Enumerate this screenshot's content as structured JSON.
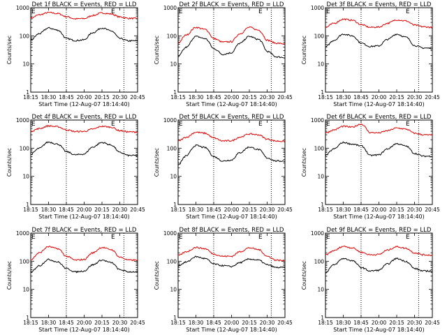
{
  "colors": {
    "events": "#000000",
    "lld": "#e00000",
    "axes": "#000000",
    "background": "#ffffff"
  },
  "shared": {
    "ylabel": "Counts/sec",
    "xlabel": "Start Time (12-Aug-07 18:14:40)",
    "x_ticks": [
      "18:15",
      "18:30",
      "18:45",
      "20:00",
      "20:15",
      "20:30",
      "20:45"
    ],
    "y_ticks": [
      "1",
      "10",
      "100",
      "1000"
    ],
    "marker_labels": [
      "E",
      "E"
    ]
  },
  "chart_data": [
    {
      "type": "line",
      "title": "Det 1f BLACK = Events, RED = LLD",
      "y_scale": "log",
      "ylim": [
        1,
        1000
      ],
      "series": [
        {
          "values": [
            430,
            560,
            670,
            620,
            480,
            400,
            410,
            530,
            650,
            600,
            470,
            420,
            410
          ]
        },
        {
          "values": [
            70,
            120,
            190,
            160,
            80,
            68,
            72,
            130,
            190,
            150,
            80,
            66,
            67
          ]
        }
      ]
    },
    {
      "type": "line",
      "title": "Det 2f BLACK = Events, RED = LLD",
      "y_scale": "log",
      "ylim": [
        1,
        1000
      ],
      "series": [
        {
          "values": [
            55,
            110,
            200,
            170,
            80,
            60,
            62,
            120,
            200,
            160,
            70,
            55,
            52
          ]
        },
        {
          "values": [
            18,
            40,
            95,
            80,
            35,
            22,
            25,
            55,
            95,
            75,
            28,
            18,
            17
          ]
        }
      ]
    },
    {
      "type": "line",
      "title": "Det 3f BLACK = Events, RED = LLD",
      "y_scale": "log",
      "ylim": [
        1,
        1000
      ],
      "series": [
        {
          "values": [
            200,
            280,
            390,
            360,
            250,
            200,
            205,
            280,
            370,
            340,
            240,
            210,
            200
          ]
        },
        {
          "values": [
            40,
            70,
            115,
            100,
            55,
            42,
            44,
            75,
            115,
            90,
            45,
            37,
            36
          ]
        }
      ]
    },
    {
      "type": "line",
      "title": "Det 4f BLACK = Events, RED = LLD",
      "y_scale": "log",
      "ylim": [
        1,
        1000
      ],
      "series": [
        {
          "values": [
            400,
            500,
            620,
            580,
            450,
            390,
            395,
            480,
            600,
            560,
            420,
            380,
            375
          ]
        },
        {
          "values": [
            60,
            100,
            165,
            140,
            75,
            58,
            62,
            110,
            160,
            130,
            70,
            55,
            55
          ]
        }
      ]
    },
    {
      "type": "line",
      "title": "Det 5f BLACK = Events, RED = LLD",
      "y_scale": "log",
      "ylim": [
        1,
        1000
      ],
      "series": [
        {
          "values": [
            180,
            250,
            370,
            340,
            230,
            180,
            185,
            250,
            320,
            300,
            210,
            180,
            175
          ]
        },
        {
          "values": [
            25,
            55,
            125,
            105,
            50,
            35,
            38,
            70,
            110,
            90,
            45,
            35,
            35
          ]
        }
      ]
    },
    {
      "type": "line",
      "title": "Det 6f BLACK = Events, RED = LLD",
      "y_scale": "log",
      "ylim": [
        1,
        1000
      ],
      "series": [
        {
          "values": [
            350,
            450,
            600,
            560,
            720,
            360,
            350,
            420,
            520,
            480,
            340,
            300,
            290
          ]
        },
        {
          "values": [
            55,
            95,
            160,
            140,
            120,
            55,
            58,
            95,
            145,
            120,
            65,
            52,
            52
          ]
        }
      ]
    },
    {
      "type": "line",
      "title": "Det 7f BLACK = Events, RED = LLD",
      "y_scale": "log",
      "ylim": [
        1,
        1000
      ],
      "series": [
        {
          "values": [
            110,
            200,
            330,
            280,
            150,
            110,
            115,
            200,
            310,
            260,
            140,
            110,
            110
          ]
        },
        {
          "values": [
            40,
            70,
            115,
            95,
            55,
            42,
            45,
            75,
            110,
            90,
            50,
            42,
            42
          ]
        }
      ]
    },
    {
      "type": "line",
      "title": "Det 8f BLACK = Events, RED = LLD",
      "y_scale": "log",
      "ylim": [
        1,
        1000
      ],
      "series": [
        {
          "values": [
            160,
            220,
            310,
            280,
            180,
            150,
            150,
            220,
            300,
            260,
            150,
            110,
            105
          ]
        },
        {
          "values": [
            70,
            95,
            145,
            125,
            80,
            70,
            65,
            90,
            120,
            110,
            75,
            60,
            60
          ]
        }
      ]
    },
    {
      "type": "line",
      "title": "Det 9f BLACK = Events, RED = LLD",
      "y_scale": "log",
      "ylim": [
        1,
        1000
      ],
      "series": [
        {
          "values": [
            170,
            240,
            340,
            300,
            210,
            170,
            175,
            250,
            330,
            290,
            200,
            170,
            165
          ]
        },
        {
          "values": [
            40,
            75,
            125,
            105,
            60,
            45,
            48,
            80,
            125,
            100,
            55,
            45,
            45
          ]
        }
      ]
    }
  ]
}
